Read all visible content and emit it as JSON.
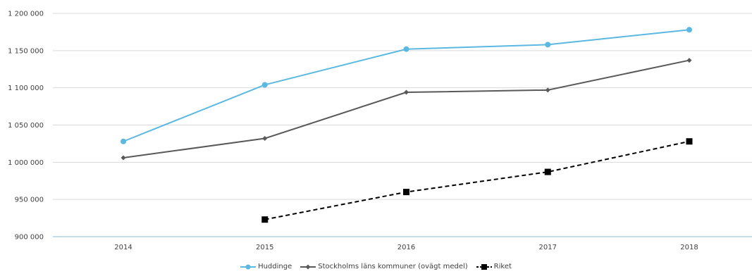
{
  "chart_data": {
    "type": "line",
    "title": "",
    "xlabel": "",
    "ylabel": "",
    "categories": [
      "2014",
      "2015",
      "2016",
      "2017",
      "2018"
    ],
    "ylim": [
      900000,
      1200000
    ],
    "yticks": [
      900000,
      950000,
      1000000,
      1050000,
      1100000,
      1150000,
      1200000
    ],
    "ytick_labels": [
      "900 000",
      "950 000",
      "1 000 000",
      "1 050 000",
      "1 100 000",
      "1 150 000",
      "1 200 000"
    ],
    "grid": true,
    "legend_position": "bottom",
    "series": [
      {
        "name": "Huddinge",
        "color": "#5bb8e0",
        "marker": "circle",
        "dash": "solid",
        "values": [
          1028000,
          1104000,
          1152000,
          1158000,
          1178000
        ]
      },
      {
        "name": "Stockholms läns kommuner (ovägt medel)",
        "color": "#595959",
        "marker": "diamond",
        "dash": "solid",
        "values": [
          1006000,
          1032000,
          1094000,
          1097000,
          1137000
        ]
      },
      {
        "name": "Riket",
        "color": "#000000",
        "marker": "square",
        "dash": "dashed",
        "values": [
          null,
          923000,
          960000,
          987000,
          1028000
        ]
      }
    ]
  }
}
